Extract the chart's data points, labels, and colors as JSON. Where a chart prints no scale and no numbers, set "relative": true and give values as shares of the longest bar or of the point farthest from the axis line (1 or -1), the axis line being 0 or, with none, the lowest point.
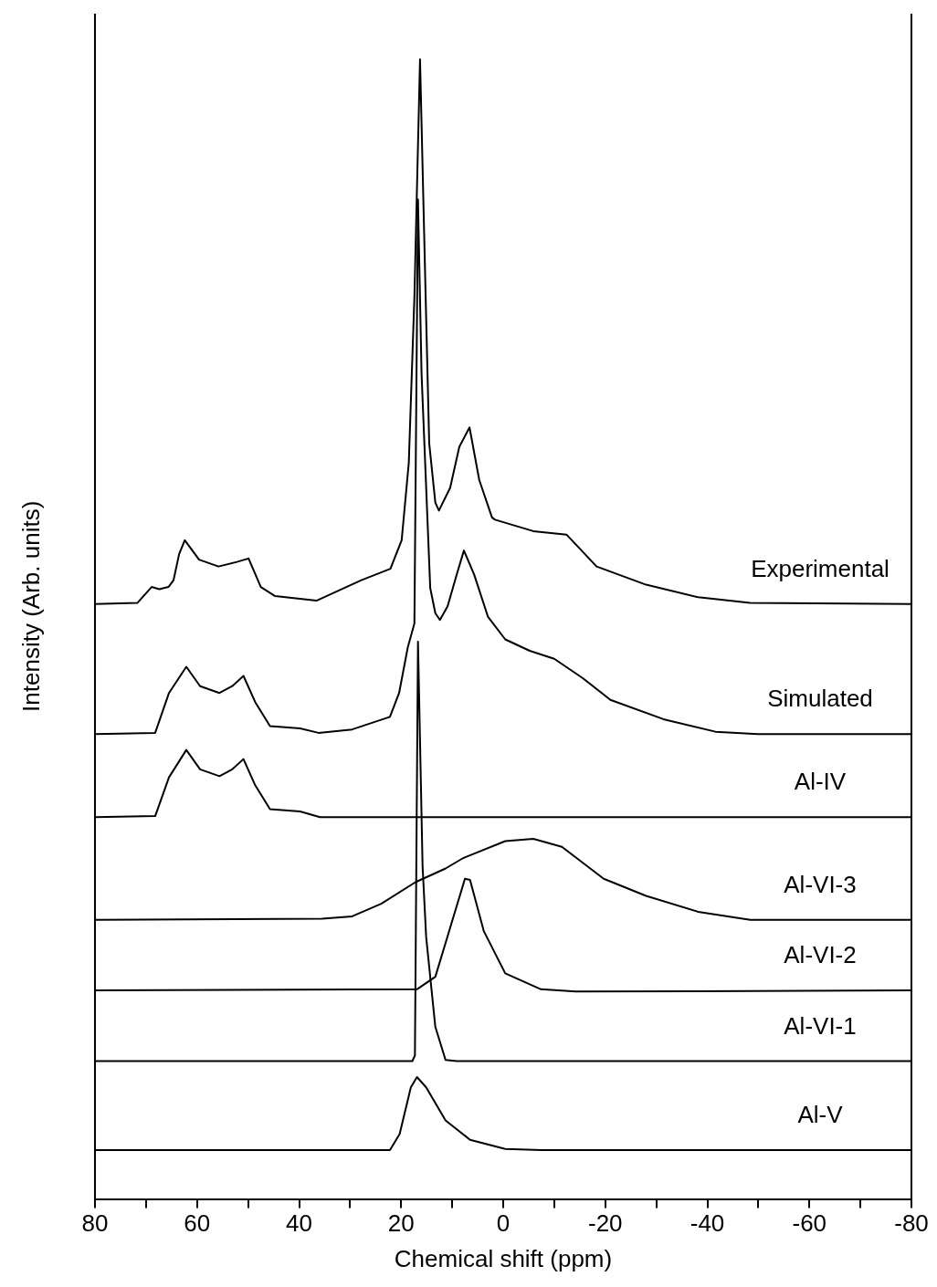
{
  "chart_data": {
    "type": "line",
    "relative": true,
    "xlabel": "Chemical shift (ppm)",
    "ylabel": "Intensity (Arb. units)",
    "xlim": [
      80,
      -80
    ],
    "xticks": [
      80,
      {
        "value": 70,
        "label": null
      },
      60,
      {
        "value": 50,
        "label": null
      },
      40,
      {
        "value": 30,
        "label": null
      },
      20,
      {
        "value": 10,
        "label": null
      },
      0,
      {
        "value": -10,
        "label": null
      },
      {
        "value": -20,
        "label": "-20"
      },
      {
        "value": -30,
        "label": null
      },
      {
        "value": -40,
        "label": "-40"
      },
      {
        "value": -50,
        "label": null
      },
      {
        "value": -60,
        "label": "-60"
      },
      {
        "value": -70,
        "label": null
      },
      {
        "value": -80,
        "label": "-80"
      }
    ],
    "grid": false,
    "legend": false,
    "marker": "none",
    "line_style": "solid",
    "series": [
      {
        "name": "Experimental",
        "color": "#000000",
        "x": [
          80,
          71.7,
          68.9,
          67.4,
          65.6,
          64.6,
          63.5,
          62.4,
          59.6,
          55.8,
          52.2,
          49.9,
          47.5,
          44.7,
          36.6,
          27.8,
          22.1,
          19.9,
          18.5,
          17.4,
          16.3,
          15.2,
          14.5,
          13.3,
          12.6,
          10.4,
          8.6,
          6.6,
          4.7,
          2.2,
          1.6,
          -5.9,
          -12.4,
          -18.3,
          -28.0,
          -38.2,
          -48.4,
          -80
        ],
        "values": [
          0.522,
          0.523,
          0.537,
          0.535,
          0.537,
          0.543,
          0.566,
          0.578,
          0.561,
          0.555,
          0.559,
          0.562,
          0.537,
          0.529,
          0.525,
          0.543,
          0.553,
          0.578,
          0.646,
          0.792,
          1,
          0.792,
          0.663,
          0.611,
          0.604,
          0.624,
          0.66,
          0.677,
          0.631,
          0.598,
          0.596,
          0.586,
          0.583,
          0.555,
          0.539,
          0.528,
          0.523,
          0.522
        ]
      },
      {
        "name": "Simulated",
        "color": "#000000",
        "x": [
          80,
          68.2,
          65.5,
          62.1,
          59.4,
          55.6,
          53.1,
          50.9,
          48.6,
          45.7,
          39.8,
          36.2,
          29.6,
          22.2,
          20.4,
          18.7,
          17.4,
          16.7,
          16.0,
          14.3,
          13.3,
          12.4,
          10.9,
          9.1,
          7.7,
          5.7,
          3.0,
          -0.4,
          -5.2,
          -10.0,
          -15.6,
          -21.0,
          -31.4,
          -41.6,
          -49.9,
          -80
        ],
        "values": [
          0.408,
          0.409,
          0.444,
          0.467,
          0.45,
          0.444,
          0.45,
          0.459,
          0.436,
          0.415,
          0.413,
          0.409,
          0.412,
          0.423,
          0.444,
          0.484,
          0.505,
          0.877,
          0.724,
          0.536,
          0.514,
          0.508,
          0.52,
          0.548,
          0.569,
          0.548,
          0.511,
          0.491,
          0.481,
          0.474,
          0.457,
          0.438,
          0.421,
          0.41,
          0.408,
          0.408
        ]
      },
      {
        "name": "Al-IV",
        "color": "#000000",
        "x": [
          80,
          68.2,
          65.5,
          62.1,
          59.4,
          55.6,
          53.1,
          50.9,
          48.6,
          45.7,
          39.8,
          35.9,
          -80
        ],
        "values": [
          0.335,
          0.336,
          0.37,
          0.394,
          0.377,
          0.371,
          0.377,
          0.386,
          0.363,
          0.342,
          0.34,
          0.335,
          0.335
        ]
      },
      {
        "name": "Al-VI-3",
        "color": "#000000",
        "x": [
          80,
          35.5,
          29.6,
          23.9,
          17.2,
          11.3,
          7.9,
          -0.4,
          -5.9,
          -11.5,
          -19.7,
          -28.0,
          -38.2,
          -48.4,
          -80
        ],
        "values": [
          0.245,
          0.246,
          0.248,
          0.259,
          0.278,
          0.29,
          0.299,
          0.314,
          0.316,
          0.309,
          0.281,
          0.266,
          0.252,
          0.245,
          0.245
        ]
      },
      {
        "name": "Al-VI-2",
        "color": "#000000",
        "x": [
          80,
          16.9,
          13.3,
          10.6,
          7.5,
          6.5,
          3.8,
          -0.4,
          -7.4,
          -14.2,
          -80
        ],
        "values": [
          0.183,
          0.184,
          0.195,
          0.235,
          0.281,
          0.28,
          0.235,
          0.198,
          0.184,
          0.182,
          0.183
        ]
      },
      {
        "name": "Al-VI-1",
        "color": "#000000",
        "x": [
          80,
          17.8,
          17.3,
          16.7,
          15.8,
          15.1,
          13.3,
          11.3,
          9.1,
          -80
        ],
        "values": [
          0.121,
          0.121,
          0.126,
          0.489,
          0.292,
          0.23,
          0.151,
          0.122,
          0.121,
          0.121
        ]
      },
      {
        "name": "Al-V",
        "color": "#000000",
        "x": [
          80,
          22.2,
          20.3,
          18.1,
          16.9,
          15.1,
          11.3,
          6.5,
          -0.4,
          -7.4,
          -80
        ],
        "values": [
          0.043,
          0.043,
          0.057,
          0.098,
          0.107,
          0.098,
          0.069,
          0.052,
          0.044,
          0.043,
          0.043
        ]
      }
    ]
  }
}
